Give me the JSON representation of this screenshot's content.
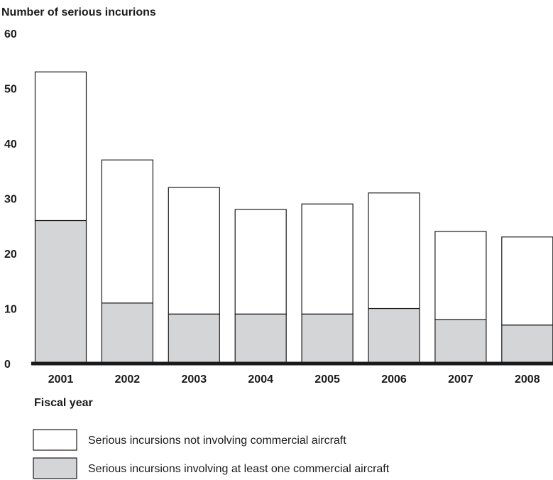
{
  "chart_data": {
    "type": "bar",
    "stacked": true,
    "ylabel": "Number of serious incurions",
    "xlabel": "Fiscal year",
    "ylim": [
      0,
      60
    ],
    "yticks": [
      0,
      10,
      20,
      30,
      40,
      50,
      60
    ],
    "categories": [
      "2001",
      "2002",
      "2003",
      "2004",
      "2005",
      "2006",
      "2007",
      "2008"
    ],
    "series": [
      {
        "name": "Serious incursions involving at least one commercial aircraft",
        "values": [
          26,
          11,
          9,
          9,
          9,
          10,
          8,
          7
        ],
        "color": "#d4d5d7"
      },
      {
        "name": "Serious incursions not involving commercial aircraft",
        "values": [
          27,
          26,
          23,
          19,
          20,
          21,
          16,
          16
        ],
        "color": "#ffffff"
      }
    ],
    "legend": [
      {
        "label": "Serious incursions not involving commercial aircraft",
        "color": "#ffffff"
      },
      {
        "label": "Serious incursions involving at least one commercial aircraft",
        "color": "#d4d5d7"
      }
    ],
    "grid": false,
    "legend_position": "bottom"
  }
}
